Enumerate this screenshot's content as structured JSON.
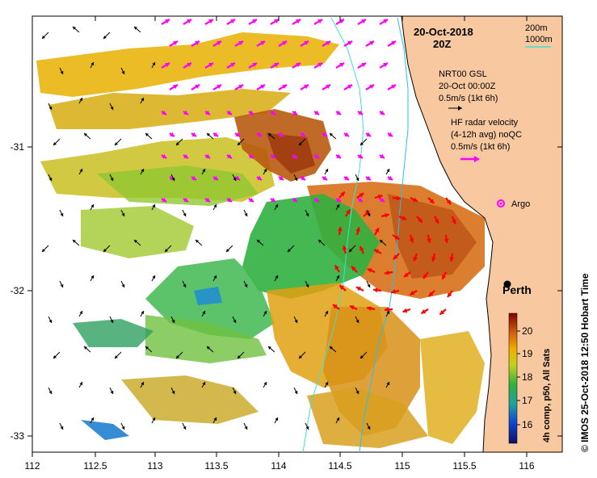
{
  "title": {
    "date": "20-Oct-2018",
    "time": "20Z"
  },
  "depth_legend": {
    "contour_1": "200m",
    "contour_2": "1000m"
  },
  "wind_legend": {
    "line1": "NRT00 GSL",
    "line2": "20-Oct 00:00Z",
    "line3": "0.5m/s (1kt 6h)"
  },
  "radar_legend": {
    "line1": "HF radar velocity",
    "line2": "(4-12h avg) noQC",
    "line3": "0.5m/s (1kt 6h)"
  },
  "argo_label": "Argo",
  "city_label": "Perth",
  "colorbar": {
    "label": "4h comp, p50, All Sats",
    "ticks": [
      "16",
      "17",
      "18",
      "19",
      "20"
    ]
  },
  "credit": "© IMOS 25-Oct-2018 12:50 Hobart Time",
  "axes": {
    "x_ticks": [
      "112",
      "112.5",
      "113",
      "113.5",
      "114",
      "114.5",
      "115",
      "115.5",
      "116"
    ],
    "y_ticks": [
      "-31",
      "-32",
      "-33"
    ]
  },
  "colors": {
    "land": "#f8c8a0",
    "coast": "#000000",
    "contour_200": "#20c0ff",
    "contour_1000": "#40e0d0",
    "radar_arrow": "#ff00ff",
    "radar_arrow_shelf": "#ff0000",
    "wind_arrow": "#000000",
    "argo_marker": "#ff00ff"
  }
}
